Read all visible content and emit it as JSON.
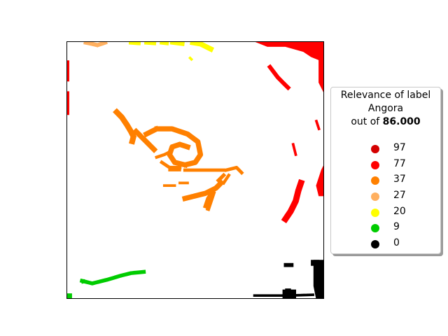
{
  "chart_data": {
    "type": "scatter",
    "x_range": [
      0,
      100
    ],
    "y_range": [
      0,
      100
    ],
    "legend": {
      "title_line1": "Relevance of label",
      "title_line2": "Angora",
      "title_prefix": "out of ",
      "title_value": "86.000",
      "placement": "right",
      "entries": [
        {
          "label": "97",
          "color": "#d40000"
        },
        {
          "label": "77",
          "color": "#ff0000"
        },
        {
          "label": "37",
          "color": "#ff8000"
        },
        {
          "label": "27",
          "color": "#ffb060"
        },
        {
          "label": "20",
          "color": "#ffff00"
        },
        {
          "label": "9",
          "color": "#00cc00"
        },
        {
          "label": "0",
          "color": "#000000"
        }
      ]
    },
    "series": [
      {
        "label": "77",
        "color": "#ff0000",
        "regions": [
          {
            "kind": "blob",
            "pts": [
              [
                73,
                100
              ],
              [
                100,
                100
              ],
              [
                100,
                92
              ],
              [
                95,
                94
              ],
              [
                92,
                96
              ],
              [
                85,
                98
              ],
              [
                78,
                98
              ]
            ]
          },
          {
            "kind": "blob",
            "pts": [
              [
                98,
                100
              ],
              [
                100,
                100
              ],
              [
                100,
                80
              ],
              [
                98,
                84
              ],
              [
                98,
                92
              ]
            ]
          },
          {
            "kind": "stroke",
            "w": 1.6,
            "pts": [
              [
                79,
                90
              ],
              [
                82,
                86
              ],
              [
                84,
                84
              ],
              [
                86,
                82
              ]
            ]
          },
          {
            "kind": "stroke",
            "w": 1.2,
            "pts": [
              [
                0.5,
                92
              ],
              [
                0.5,
                85
              ]
            ]
          },
          {
            "kind": "stroke",
            "w": 1.2,
            "pts": [
              [
                0.5,
                80
              ],
              [
                0.5,
                72
              ]
            ]
          },
          {
            "kind": "stroke",
            "w": 2.4,
            "pts": [
              [
                85,
                31
              ],
              [
                87,
                34
              ],
              [
                89,
                38
              ],
              [
                90,
                42
              ],
              [
                91,
                45
              ]
            ]
          },
          {
            "kind": "blob",
            "pts": [
              [
                98,
                40
              ],
              [
                100,
                40
              ],
              [
                100,
                52
              ],
              [
                99,
                50
              ],
              [
                97,
                44
              ]
            ]
          },
          {
            "kind": "stroke",
            "w": 1,
            "pts": [
              [
                88,
                60
              ],
              [
                89,
                56
              ]
            ]
          },
          {
            "kind": "stroke",
            "w": 1,
            "pts": [
              [
                97,
                69
              ],
              [
                98,
                66
              ]
            ]
          }
        ]
      },
      {
        "label": "37",
        "color": "#ff8000",
        "regions": [
          {
            "kind": "stroke",
            "w": 2.2,
            "pts": [
              [
                19.5,
                72.5
              ],
              [
                21.5,
                70.5
              ],
              [
                23.5,
                67.5
              ],
              [
                25,
                65
              ],
              [
                26,
                63
              ],
              [
                25.5,
                61
              ]
            ]
          },
          {
            "kind": "stroke",
            "w": 2,
            "pts": [
              [
                31,
                64
              ],
              [
                35,
                66
              ],
              [
                41,
                66
              ],
              [
                47,
                64
              ],
              [
                51,
                61
              ],
              [
                52,
                56
              ],
              [
                50,
                53
              ],
              [
                46,
                52
              ],
              [
                42,
                53
              ],
              [
                40,
                56
              ],
              [
                41,
                59
              ],
              [
                44,
                60
              ],
              [
                47,
                59
              ]
            ]
          },
          {
            "kind": "stroke",
            "w": 2,
            "pts": [
              [
                27,
                65
              ],
              [
                29,
                63
              ],
              [
                31,
                61
              ],
              [
                34,
                58
              ]
            ]
          },
          {
            "kind": "stroke",
            "w": 1.2,
            "pts": [
              [
                35,
                55
              ],
              [
                38,
                56
              ],
              [
                40,
                57
              ]
            ]
          },
          {
            "kind": "stroke",
            "w": 1.3,
            "pts": [
              [
                37,
                53
              ],
              [
                40,
                51
              ],
              [
                44,
                51
              ]
            ]
          },
          {
            "kind": "stroke",
            "w": 1,
            "pts": [
              [
                40,
                50
              ],
              [
                44,
                50
              ]
            ]
          },
          {
            "kind": "stroke",
            "w": 1.3,
            "pts": [
              [
                46,
                50
              ],
              [
                52,
                50
              ],
              [
                57,
                50
              ],
              [
                61,
                50
              ]
            ]
          },
          {
            "kind": "stroke",
            "w": 1.3,
            "pts": [
              [
                62,
                50
              ],
              [
                66,
                51
              ],
              [
                68,
                49
              ]
            ]
          },
          {
            "kind": "stroke",
            "w": 2,
            "pts": [
              [
                46,
                39
              ],
              [
                50,
                40
              ],
              [
                54,
                41
              ],
              [
                58,
                43
              ],
              [
                60,
                45
              ]
            ]
          },
          {
            "kind": "stroke",
            "w": 1.6,
            "pts": [
              [
                54,
                36
              ],
              [
                55,
                39
              ],
              [
                57,
                42
              ]
            ]
          },
          {
            "kind": "stroke",
            "w": 1.6,
            "pts": [
              [
                55,
                35
              ],
              [
                56,
                38
              ],
              [
                57,
                41
              ]
            ]
          },
          {
            "kind": "stroke",
            "w": 1,
            "pts": [
              [
                38,
                44
              ],
              [
                42,
                44
              ]
            ]
          },
          {
            "kind": "stroke",
            "w": 1,
            "pts": [
              [
                44,
                45
              ],
              [
                47,
                45
              ]
            ]
          },
          {
            "kind": "stroke",
            "w": 1.2,
            "pts": [
              [
                61,
                45
              ],
              [
                63,
                48
              ]
            ]
          },
          {
            "kind": "stroke",
            "w": 1.4,
            "pts": [
              [
                59,
                46
              ],
              [
                61,
                48
              ]
            ]
          }
        ]
      },
      {
        "label": "27",
        "color": "#ffb060",
        "regions": [
          {
            "kind": "stroke",
            "w": 1.6,
            "pts": [
              [
                7.5,
                99.5
              ],
              [
                10,
                99
              ],
              [
                12,
                98.5
              ],
              [
                15,
                99.5
              ]
            ]
          }
        ]
      },
      {
        "label": "20",
        "color": "#ffff00",
        "regions": [
          {
            "kind": "stroke",
            "w": 1.6,
            "pts": [
              [
                25,
                99.5
              ],
              [
                28,
                99.3
              ]
            ]
          },
          {
            "kind": "stroke",
            "w": 1.6,
            "pts": [
              [
                31,
                99.5
              ],
              [
                34,
                99.3
              ]
            ]
          },
          {
            "kind": "stroke",
            "w": 1.6,
            "pts": [
              [
                37,
                99.5
              ],
              [
                39,
                99.3
              ]
            ]
          },
          {
            "kind": "stroke",
            "w": 1.6,
            "pts": [
              [
                41,
                99.5
              ],
              [
                45,
                99
              ]
            ]
          },
          {
            "kind": "stroke",
            "w": 2,
            "pts": [
              [
                49,
                99.5
              ],
              [
                52,
                99
              ],
              [
                55,
                97.5
              ],
              [
                56,
                97
              ]
            ]
          },
          {
            "kind": "stroke",
            "w": 1,
            "pts": [
              [
                48,
                93.5
              ],
              [
                48.5,
                93
              ]
            ]
          }
        ]
      },
      {
        "label": "9",
        "color": "#00cc00",
        "regions": [
          {
            "kind": "stroke",
            "w": 1.5,
            "pts": [
              [
                6,
                7
              ],
              [
                10,
                6
              ],
              [
                16,
                7.5
              ],
              [
                21,
                9
              ],
              [
                25,
                10
              ],
              [
                30,
                10.5
              ]
            ]
          },
          {
            "kind": "blob",
            "pts": [
              [
                6,
                6
              ],
              [
                8,
                6.5
              ],
              [
                7,
                7.5
              ],
              [
                6,
                7.5
              ]
            ]
          },
          {
            "kind": "blob",
            "pts": [
              [
                0,
                2
              ],
              [
                2,
                2
              ],
              [
                2,
                0
              ],
              [
                0,
                0
              ]
            ]
          }
        ]
      },
      {
        "label": "0",
        "color": "#000000",
        "regions": [
          {
            "kind": "blob",
            "pts": [
              [
                96,
                15
              ],
              [
                100,
                15
              ],
              [
                100,
                0
              ],
              [
                97,
                0
              ],
              [
                96,
                5
              ]
            ]
          },
          {
            "kind": "stroke",
            "w": 1,
            "pts": [
              [
                73,
                1.3
              ],
              [
                86,
                1.3
              ],
              [
                92,
                1.5
              ],
              [
                96,
                1.6
              ]
            ]
          },
          {
            "kind": "blob",
            "pts": [
              [
                84,
                3.5
              ],
              [
                89,
                3.5
              ],
              [
                89,
                0.3
              ],
              [
                84,
                0.3
              ]
            ]
          },
          {
            "kind": "blob",
            "pts": [
              [
                85,
                3.6
              ],
              [
                87,
                3.6
              ],
              [
                87,
                3.9
              ],
              [
                85,
                3.9
              ]
            ]
          },
          {
            "kind": "blob",
            "pts": [
              [
                84.5,
                12.5
              ],
              [
                88,
                12.5
              ],
              [
                88,
                13.8
              ],
              [
                84.5,
                13.8
              ]
            ]
          },
          {
            "kind": "blob",
            "pts": [
              [
                95,
                13
              ],
              [
                98,
                13
              ],
              [
                98,
                15
              ],
              [
                95,
                15
              ]
            ]
          }
        ]
      }
    ]
  }
}
